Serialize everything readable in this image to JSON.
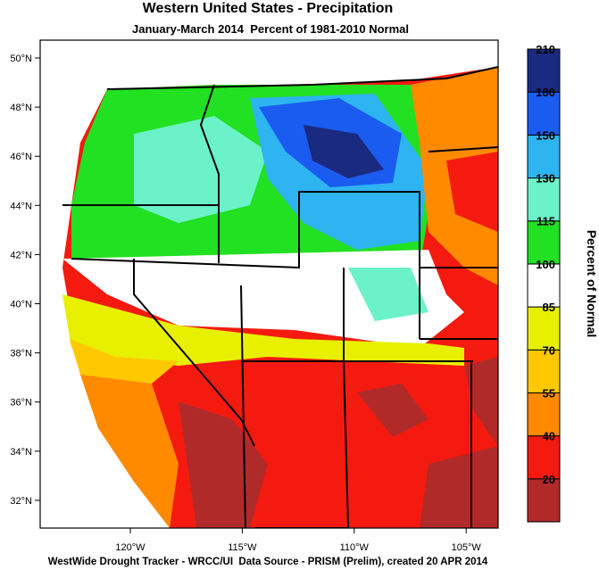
{
  "title": "Western United States - Precipitation",
  "subtitle": "January-March 2014  Percent of 1981-2010 Normal",
  "map": {
    "lat_labels": [
      "50°N",
      "48°N",
      "46°N",
      "44°N",
      "42°N",
      "40°N",
      "38°N",
      "36°N",
      "34°N",
      "32°N"
    ],
    "lon_labels": [
      "120°W",
      "115°W",
      "110°W",
      "105°W"
    ]
  },
  "colorbar": {
    "title": "Percent of Normal",
    "colors": [
      "#b02a2a",
      "#f51a10",
      "#ff8a00",
      "#ffc800",
      "#e8f000",
      "#ffffff",
      "#22e022",
      "#6cf2c8",
      "#2eb4f0",
      "#1a5cf0",
      "#1a2a80"
    ],
    "labels": [
      "20",
      "40",
      "55",
      "70",
      "85",
      "100",
      "115",
      "130",
      "150",
      "180",
      "210"
    ]
  },
  "footer": "WestWide Drought Tracker - WRCC/UI  Data Source - PRISM (Prelim), created 20 APR 2014"
}
